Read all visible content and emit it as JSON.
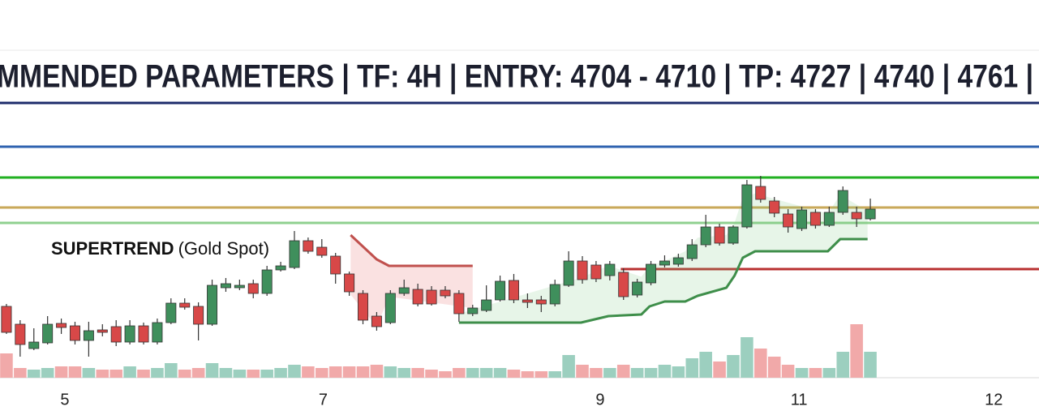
{
  "chart_data": {
    "type": "candlestick",
    "title": "MMENDED PARAMETERS | TF: 4H | ENTRY: 4704 - 4710 | TP: 4727 | 4740 | 4761 |",
    "annotation": {
      "bold": "SUPERTREND",
      "text": "(Gold Spot)"
    },
    "xlim": [
      -0.47,
      75.3
    ],
    "xticks": [
      {
        "value": 4.26,
        "label": "5"
      },
      {
        "value": 23.1,
        "label": "7"
      },
      {
        "value": 43.3,
        "label": "9"
      },
      {
        "value": 57.8,
        "label": "11"
      },
      {
        "value": 72.0,
        "label": "12"
      }
    ],
    "ylim": [
      20,
      370
    ],
    "vlim": [
      0,
      100
    ],
    "up_color": "#3f8f5c",
    "down_color": "#d84848",
    "volume_up_color": "#9ccfbf",
    "volume_down_color": "#f1a9a9",
    "x": [
      0,
      1,
      2,
      3,
      4,
      5,
      6,
      7,
      8,
      9,
      10,
      11,
      12,
      13,
      14,
      15,
      16,
      17,
      18,
      19,
      20,
      21,
      22,
      23,
      24,
      25,
      26,
      27,
      28,
      29,
      30,
      31,
      32,
      33,
      34,
      35,
      36,
      37,
      38,
      39,
      40,
      41,
      42,
      43,
      44,
      45,
      46,
      47,
      48,
      49,
      50,
      51,
      52,
      53,
      54,
      55,
      56,
      57,
      58,
      59,
      60,
      61,
      62,
      63
    ],
    "open": [
      122,
      100,
      70,
      77,
      101,
      98,
      80,
      93,
      97,
      78,
      98,
      78,
      102,
      126,
      122,
      100,
      145,
      145,
      150,
      138,
      167,
      170,
      203,
      195,
      184,
      162,
      138,
      110,
      102,
      138,
      143,
      142,
      142,
      138,
      113,
      117,
      130,
      154,
      130,
      130,
      125,
      148,
      178,
      173,
      160,
      164,
      136,
      151,
      173,
      174,
      181,
      198,
      220,
      200,
      220,
      270,
      252,
      236,
      218,
      238,
      222,
      238,
      238,
      230
    ],
    "high": [
      125,
      105,
      95,
      110,
      107,
      103,
      103,
      100,
      105,
      105,
      102,
      107,
      132,
      132,
      127,
      155,
      157,
      155,
      155,
      172,
      177,
      215,
      207,
      205,
      188,
      165,
      142,
      115,
      142,
      155,
      150,
      147,
      147,
      142,
      124,
      148,
      160,
      162,
      138,
      135,
      155,
      190,
      184,
      178,
      178,
      169,
      156,
      178,
      185,
      187,
      205,
      235,
      224,
      222,
      278,
      283,
      257,
      242,
      245,
      242,
      245,
      270,
      245,
      255
    ],
    "low": [
      88,
      60,
      68,
      75,
      88,
      75,
      60,
      85,
      73,
      75,
      75,
      75,
      100,
      118,
      80,
      98,
      140,
      142,
      132,
      135,
      165,
      168,
      187,
      182,
      150,
      135,
      100,
      92,
      100,
      135,
      122,
      123,
      132,
      103,
      110,
      115,
      128,
      126,
      120,
      115,
      122,
      146,
      150,
      152,
      154,
      130,
      133,
      148,
      170,
      171,
      178,
      195,
      197,
      198,
      218,
      250,
      232,
      213,
      215,
      218,
      220,
      235,
      220,
      228
    ],
    "close": [
      90,
      75,
      78,
      100,
      96,
      80,
      92,
      90,
      78,
      98,
      78,
      102,
      126,
      121,
      100,
      148,
      150,
      148,
      138,
      167,
      172,
      203,
      190,
      185,
      162,
      140,
      105,
      97,
      138,
      145,
      125,
      125,
      135,
      113,
      120,
      130,
      153,
      130,
      127,
      125,
      149,
      178,
      155,
      156,
      174,
      134,
      152,
      174,
      178,
      182,
      198,
      220,
      200,
      220,
      272,
      254,
      237,
      220,
      241,
      222,
      238,
      265,
      230,
      242
    ],
    "volume": [
      30,
      12,
      10,
      12,
      14,
      14,
      12,
      10,
      10,
      14,
      10,
      12,
      18,
      10,
      12,
      18,
      12,
      10,
      10,
      10,
      12,
      16,
      14,
      12,
      14,
      14,
      14,
      16,
      14,
      12,
      12,
      10,
      8,
      12,
      12,
      12,
      12,
      10,
      8,
      8,
      8,
      28,
      16,
      12,
      12,
      16,
      12,
      12,
      16,
      14,
      24,
      32,
      20,
      28,
      50,
      36,
      26,
      16,
      12,
      12,
      12,
      32,
      66,
      32
    ],
    "supertrend": [
      {
        "color": "#c0504d",
        "fill": "rgba(230,120,120,0.22)",
        "x": [
          25.1,
          27.0,
          27.9,
          34.0
        ],
        "values": [
          210,
          180,
          172,
          172
        ]
      },
      {
        "color": "#3e8e4a",
        "fill": "rgba(120,200,130,0.18)",
        "x": [
          33.0,
          41.9,
          43.9,
          46.3,
          46.9,
          48.0,
          49.5,
          50.4,
          52.5,
          53.1,
          53.7,
          54.6,
          59.9,
          60.8,
          62.8
        ],
        "values": [
          102,
          102,
          110,
          112,
          122,
          128,
          128,
          135,
          145,
          160,
          182,
          190,
          190,
          205,
          205
        ]
      }
    ],
    "levels": [
      {
        "value": 319,
        "color": "#2f63b0"
      },
      {
        "value": 281,
        "color": "#22b022"
      },
      {
        "value": 244,
        "color": "#c9a95a"
      },
      {
        "value": 225,
        "color": "#8fd08f"
      },
      {
        "value": 168,
        "color": "#b83030",
        "start": 44.8
      }
    ]
  }
}
